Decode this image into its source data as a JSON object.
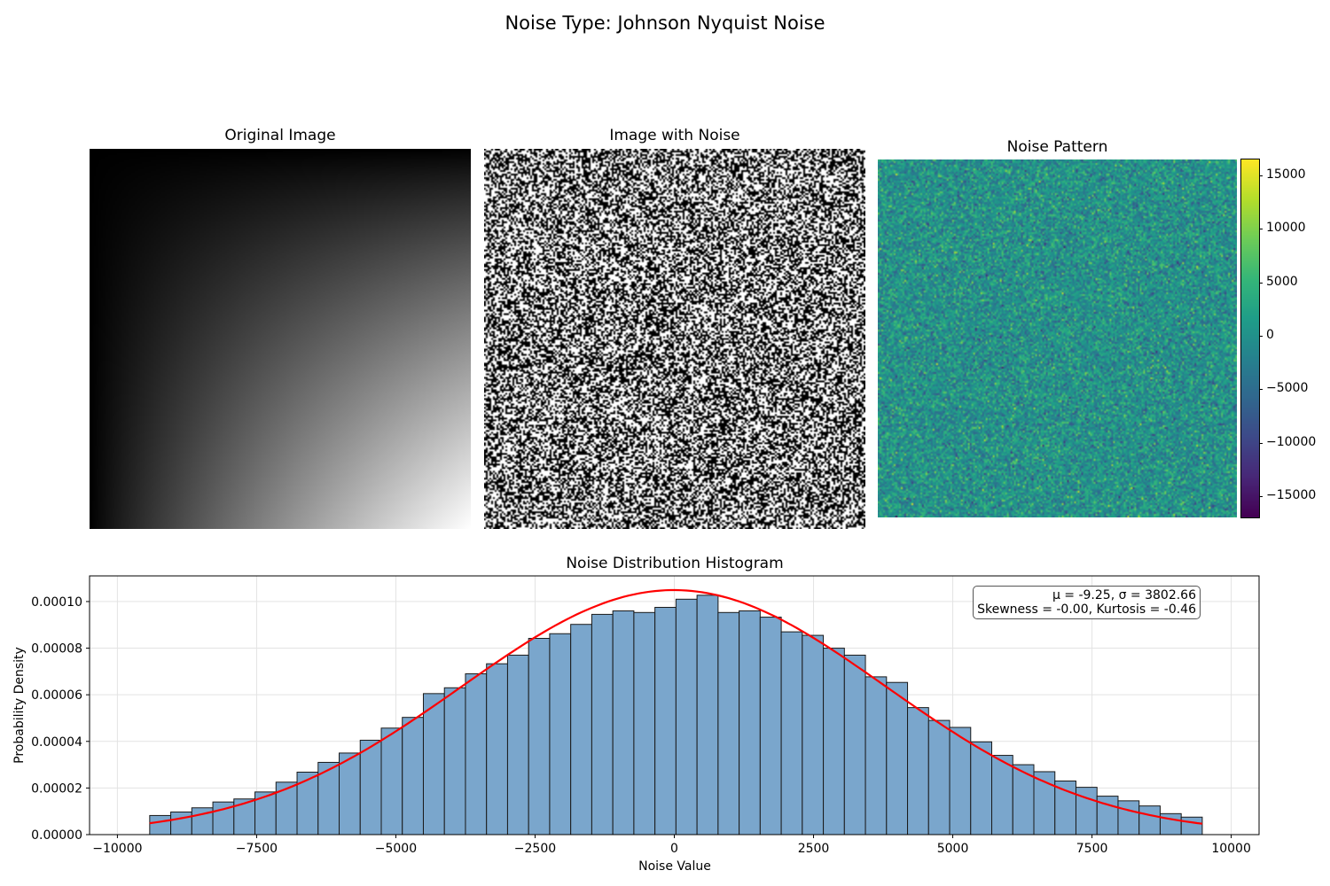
{
  "figure_title": "Noise Type: Johnson Nyquist Noise",
  "panels": {
    "original_title": "Original Image",
    "noisy_title": "Image with Noise",
    "pattern_title": "Noise Pattern",
    "colorbar_ticks": [
      "15000",
      "10000",
      "5000",
      "0",
      "−5000",
      "−10000",
      "−15000"
    ],
    "colorbar_values": [
      15000,
      10000,
      5000,
      0,
      -5000,
      -10000,
      -15000
    ],
    "colorbar_range": [
      -17000,
      16500
    ],
    "colormap": "viridis"
  },
  "chart_data": {
    "type": "bar",
    "title": "Noise Distribution Histogram",
    "xlabel": "Noise Value",
    "ylabel": "Probability Density",
    "xlim": [
      -10500,
      10500
    ],
    "ylim": [
      0,
      0.000111
    ],
    "grid": true,
    "xticks": [
      -10000,
      -7500,
      -5000,
      -2500,
      0,
      2500,
      5000,
      7500,
      10000
    ],
    "xtick_labels": [
      "−10000",
      "−7500",
      "−5000",
      "−2500",
      "0",
      "2500",
      "5000",
      "7500",
      "10000"
    ],
    "yticks": [
      0,
      2e-05,
      4e-05,
      6e-05,
      8e-05,
      0.0001
    ],
    "ytick_labels": [
      "0.00000",
      "0.00002",
      "0.00004",
      "0.00006",
      "0.00008",
      "0.00010"
    ],
    "bin_start": -9420,
    "bin_width": 378,
    "values": [
      8.2e-06,
      9.7e-06,
      1.15e-05,
      1.4e-05,
      1.53e-05,
      1.83e-05,
      2.25e-05,
      2.68e-05,
      3.1e-05,
      3.5e-05,
      4.05e-05,
      4.57e-05,
      5.03e-05,
      6.05e-05,
      6.3e-05,
      6.9e-05,
      7.33e-05,
      7.7e-05,
      8.42e-05,
      8.62e-05,
      9.02e-05,
      9.45e-05,
      9.6e-05,
      9.53e-05,
      9.75e-05,
      0.000101,
      0.0001027,
      9.53e-05,
      9.6e-05,
      9.33e-05,
      8.7e-05,
      8.55e-05,
      8e-05,
      7.7e-05,
      6.77e-05,
      6.53e-05,
      5.45e-05,
      4.9e-05,
      4.6e-05,
      3.98e-05,
      3.4e-05,
      3e-05,
      2.7e-05,
      2.3e-05,
      2.03e-05,
      1.65e-05,
      1.45e-05,
      1.23e-05,
      9e-06,
      7.5e-06
    ],
    "bar_color": "#7aa6cc",
    "fit_color": "#ff0000",
    "fit_mu": -9.25,
    "fit_sigma": 3802.66,
    "stats_line1": "μ = -9.25, σ = 3802.66",
    "stats_line2": "Skewness = -0.00, Kurtosis = -0.46"
  }
}
